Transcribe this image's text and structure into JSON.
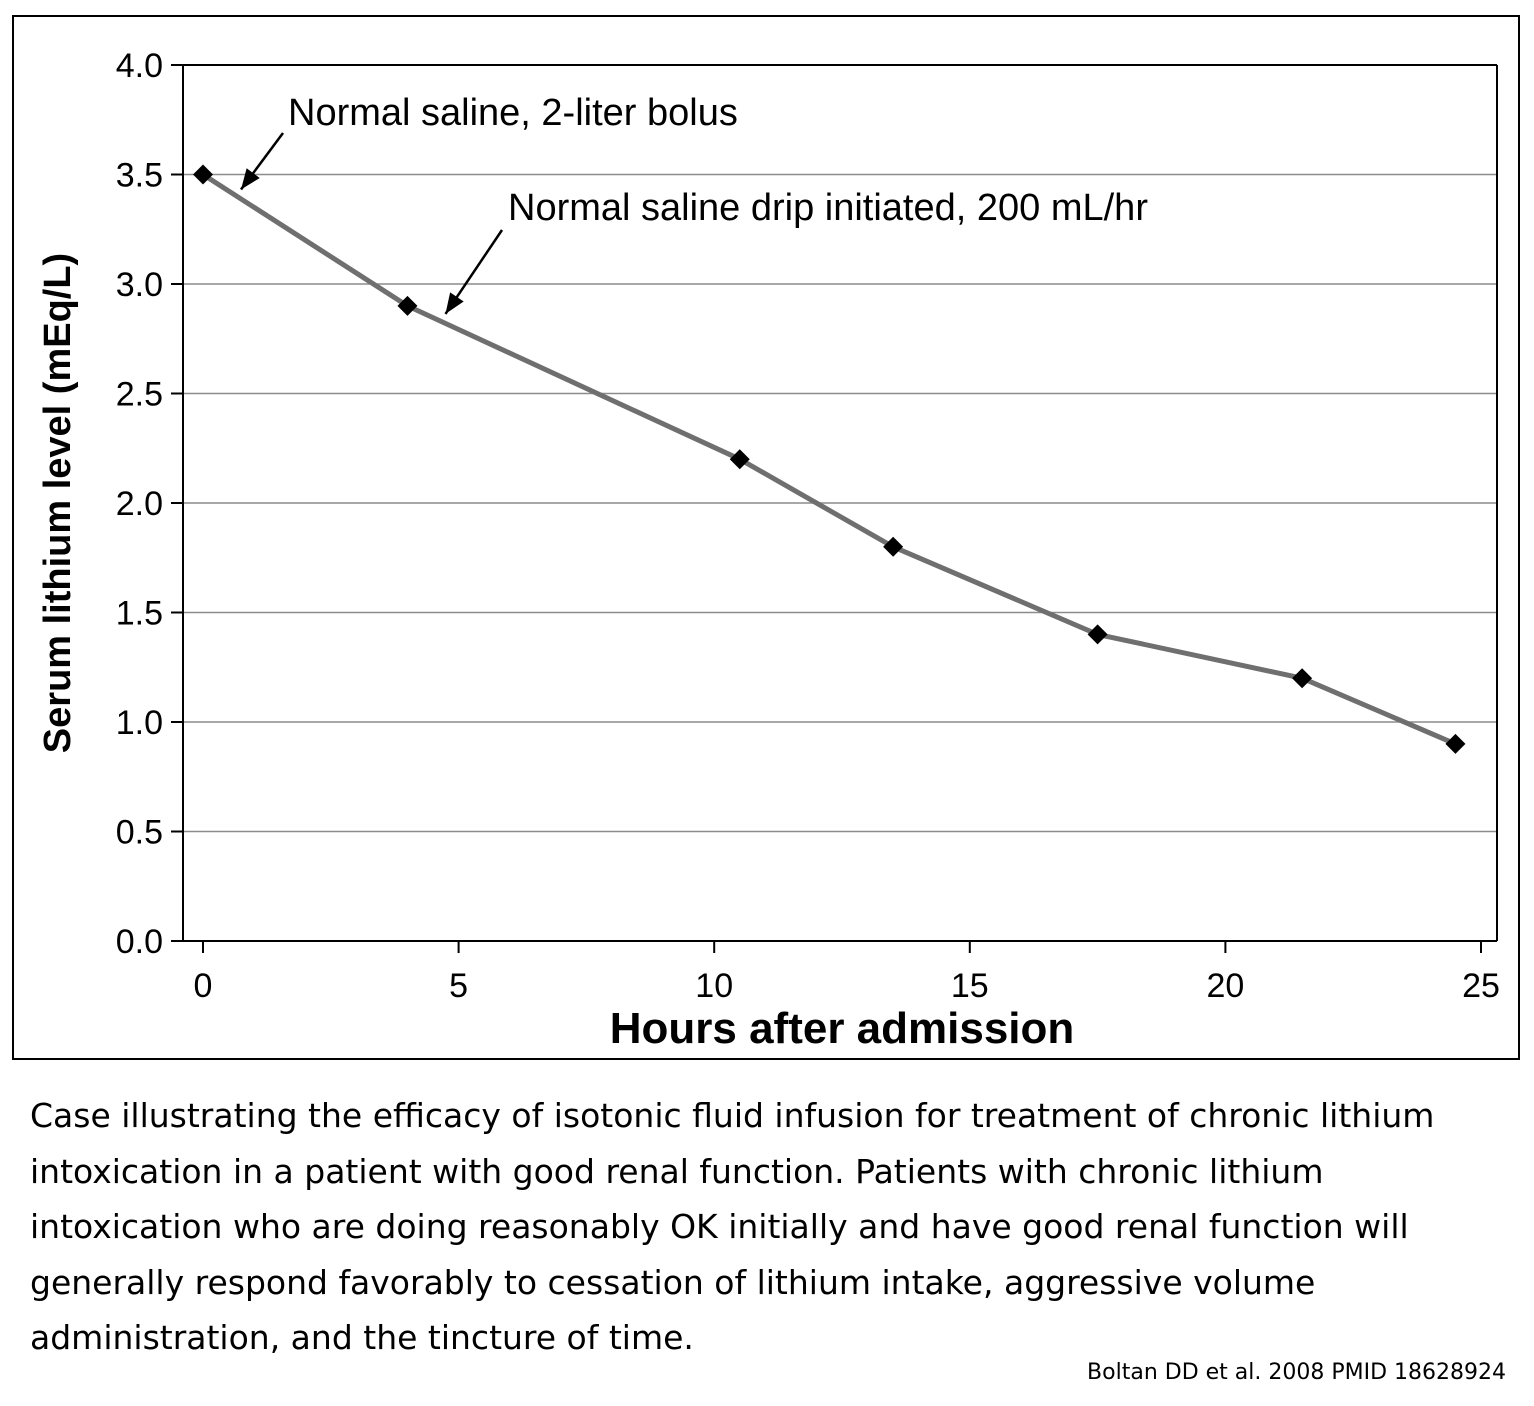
{
  "chart_data": {
    "type": "line",
    "title": "",
    "xlabel": "Hours after admission",
    "ylabel": "Serum lithium level (mEq/L)",
    "xlim": [
      0,
      25
    ],
    "ylim": [
      0,
      4
    ],
    "x_ticks": [
      "0",
      "5",
      "10",
      "15",
      "20",
      "25"
    ],
    "y_ticks": [
      "0.0",
      "0.5",
      "1.0",
      "1.5",
      "2.0",
      "2.5",
      "3.0",
      "3.5",
      "4.0"
    ],
    "grid": "horizontal",
    "line_color": "#6f6f6f",
    "marker_color": "#000000",
    "series": [
      {
        "x": [
          0,
          4,
          10.5,
          13.5,
          17.5,
          21.5,
          24.5
        ],
        "y": [
          3.5,
          2.9,
          2.2,
          1.8,
          1.4,
          1.2,
          0.9
        ]
      }
    ],
    "annotations": [
      {
        "text": "Normal saline, 2-liter bolus",
        "x": 0,
        "y": 3.5
      },
      {
        "text": "Normal saline drip initiated, 200 mL/hr",
        "x": 4,
        "y": 2.9
      }
    ]
  },
  "caption": "Case illustrating the efficacy of isotonic fluid infusion for treatment of chronic lithium intoxication in a patient with good renal function.  Patients with chronic lithium intoxication who are doing reasonably OK initially and have good renal function will generally respond favorably to cessation of lithium intake, aggressive volume administration, and the tincture of time.",
  "citation": "Boltan DD et al.  2008  PMID  18628924"
}
